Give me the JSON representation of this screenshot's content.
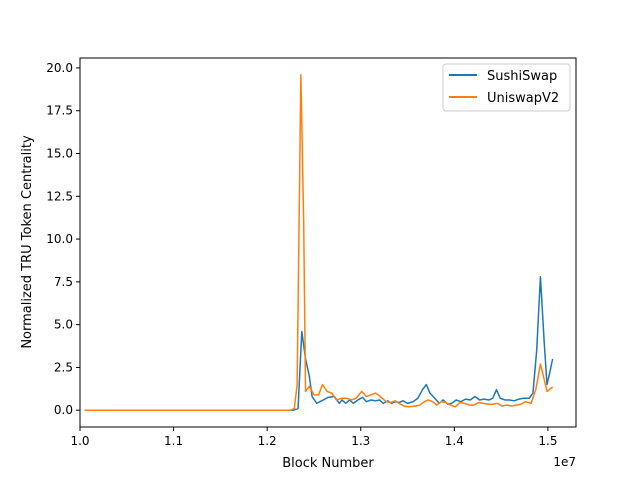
{
  "chart_data": {
    "type": "line",
    "xlabel": "Block Number",
    "ylabel": "Normalized TRU Token Centrality",
    "x_offset_label": "1e7",
    "xlim": [
      10000000,
      15300000
    ],
    "ylim": [
      -0.98,
      20.58
    ],
    "x_ticks": [
      {
        "value": 10000000,
        "label": "1.0"
      },
      {
        "value": 11000000,
        "label": "1.1"
      },
      {
        "value": 12000000,
        "label": "1.2"
      },
      {
        "value": 13000000,
        "label": "1.3"
      },
      {
        "value": 14000000,
        "label": "1.4"
      },
      {
        "value": 15000000,
        "label": "1.5"
      }
    ],
    "y_ticks": [
      {
        "value": 0,
        "label": "0.0"
      },
      {
        "value": 2.5,
        "label": "2.5"
      },
      {
        "value": 5,
        "label": "5.0"
      },
      {
        "value": 7.5,
        "label": "7.5"
      },
      {
        "value": 10,
        "label": "10.0"
      },
      {
        "value": 12.5,
        "label": "12.5"
      },
      {
        "value": 15,
        "label": "15.0"
      },
      {
        "value": 17.5,
        "label": "17.5"
      },
      {
        "value": 20,
        "label": "20.0"
      }
    ],
    "grid": false,
    "legend_position": "top-right",
    "series": [
      {
        "name": "SushiSwap",
        "color": "#1f77b4",
        "points": [
          [
            10050000,
            0.0
          ],
          [
            10500000,
            0.0
          ],
          [
            11000000,
            0.0
          ],
          [
            11500000,
            0.0
          ],
          [
            12000000,
            0.0
          ],
          [
            12280000,
            0.0
          ],
          [
            12330000,
            0.1
          ],
          [
            12370000,
            4.6
          ],
          [
            12410000,
            3.0
          ],
          [
            12450000,
            2.0
          ],
          [
            12480000,
            0.8
          ],
          [
            12530000,
            0.4
          ],
          [
            12600000,
            0.6
          ],
          [
            12650000,
            0.75
          ],
          [
            12720000,
            0.8
          ],
          [
            12770000,
            0.4
          ],
          [
            12800000,
            0.6
          ],
          [
            12840000,
            0.4
          ],
          [
            12880000,
            0.6
          ],
          [
            12920000,
            0.4
          ],
          [
            12970000,
            0.6
          ],
          [
            13020000,
            0.75
          ],
          [
            13060000,
            0.5
          ],
          [
            13110000,
            0.6
          ],
          [
            13160000,
            0.55
          ],
          [
            13200000,
            0.6
          ],
          [
            13240000,
            0.4
          ],
          [
            13290000,
            0.55
          ],
          [
            13330000,
            0.4
          ],
          [
            13370000,
            0.5
          ],
          [
            13410000,
            0.45
          ],
          [
            13450000,
            0.55
          ],
          [
            13500000,
            0.4
          ],
          [
            13560000,
            0.5
          ],
          [
            13610000,
            0.7
          ],
          [
            13660000,
            1.2
          ],
          [
            13700000,
            1.5
          ],
          [
            13740000,
            1.0
          ],
          [
            13790000,
            0.7
          ],
          [
            13840000,
            0.4
          ],
          [
            13880000,
            0.6
          ],
          [
            13930000,
            0.35
          ],
          [
            13970000,
            0.4
          ],
          [
            14020000,
            0.6
          ],
          [
            14070000,
            0.5
          ],
          [
            14120000,
            0.65
          ],
          [
            14170000,
            0.6
          ],
          [
            14220000,
            0.8
          ],
          [
            14270000,
            0.6
          ],
          [
            14320000,
            0.65
          ],
          [
            14370000,
            0.6
          ],
          [
            14410000,
            0.7
          ],
          [
            14450000,
            1.2
          ],
          [
            14490000,
            0.7
          ],
          [
            14540000,
            0.6
          ],
          [
            14590000,
            0.6
          ],
          [
            14640000,
            0.55
          ],
          [
            14690000,
            0.65
          ],
          [
            14740000,
            0.7
          ],
          [
            14800000,
            0.7
          ],
          [
            14840000,
            1.0
          ],
          [
            14880000,
            3.5
          ],
          [
            14920000,
            7.8
          ],
          [
            14960000,
            4.0
          ],
          [
            14990000,
            1.5
          ],
          [
            15020000,
            2.2
          ],
          [
            15050000,
            3.0
          ]
        ]
      },
      {
        "name": "UniswapV2",
        "color": "#ff7f0e",
        "points": [
          [
            10050000,
            0.0
          ],
          [
            10500000,
            0.0
          ],
          [
            11000000,
            0.0
          ],
          [
            11500000,
            0.0
          ],
          [
            12000000,
            0.0
          ],
          [
            12250000,
            0.0
          ],
          [
            12290000,
            0.1
          ],
          [
            12320000,
            1.5
          ],
          [
            12360000,
            19.6
          ],
          [
            12390000,
            11.0
          ],
          [
            12410000,
            1.1
          ],
          [
            12450000,
            1.4
          ],
          [
            12500000,
            0.9
          ],
          [
            12550000,
            0.9
          ],
          [
            12590000,
            1.5
          ],
          [
            12640000,
            1.1
          ],
          [
            12690000,
            1.0
          ],
          [
            12740000,
            0.6
          ],
          [
            12800000,
            0.7
          ],
          [
            12850000,
            0.7
          ],
          [
            12900000,
            0.6
          ],
          [
            12950000,
            0.7
          ],
          [
            13010000,
            1.1
          ],
          [
            13060000,
            0.8
          ],
          [
            13110000,
            0.9
          ],
          [
            13160000,
            1.0
          ],
          [
            13210000,
            0.8
          ],
          [
            13270000,
            0.5
          ],
          [
            13320000,
            0.45
          ],
          [
            13370000,
            0.55
          ],
          [
            13410000,
            0.4
          ],
          [
            13460000,
            0.25
          ],
          [
            13510000,
            0.2
          ],
          [
            13580000,
            0.25
          ],
          [
            13630000,
            0.3
          ],
          [
            13680000,
            0.5
          ],
          [
            13720000,
            0.6
          ],
          [
            13770000,
            0.5
          ],
          [
            13810000,
            0.3
          ],
          [
            13860000,
            0.5
          ],
          [
            13910000,
            0.45
          ],
          [
            13960000,
            0.3
          ],
          [
            14010000,
            0.2
          ],
          [
            14060000,
            0.45
          ],
          [
            14110000,
            0.4
          ],
          [
            14160000,
            0.3
          ],
          [
            14210000,
            0.3
          ],
          [
            14260000,
            0.45
          ],
          [
            14310000,
            0.4
          ],
          [
            14360000,
            0.35
          ],
          [
            14410000,
            0.35
          ],
          [
            14460000,
            0.4
          ],
          [
            14510000,
            0.25
          ],
          [
            14560000,
            0.3
          ],
          [
            14610000,
            0.25
          ],
          [
            14660000,
            0.3
          ],
          [
            14710000,
            0.35
          ],
          [
            14760000,
            0.5
          ],
          [
            14820000,
            0.4
          ],
          [
            14870000,
            1.2
          ],
          [
            14920000,
            2.7
          ],
          [
            14960000,
            1.8
          ],
          [
            14990000,
            1.1
          ],
          [
            15050000,
            1.35
          ]
        ]
      }
    ]
  }
}
